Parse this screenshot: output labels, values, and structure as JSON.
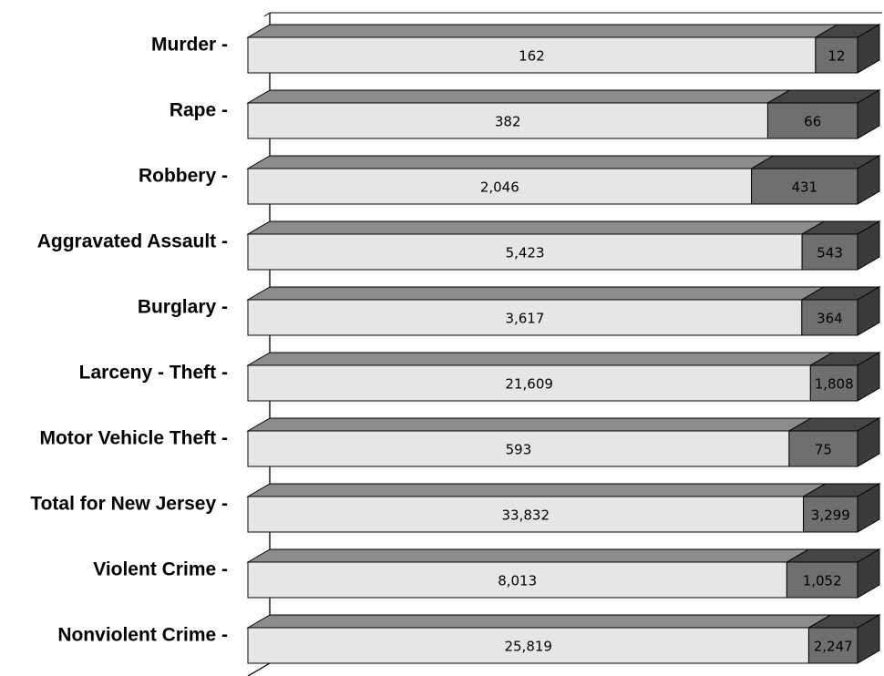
{
  "chart_data": {
    "type": "bar",
    "orientation": "horizontal",
    "stacked": "percent",
    "style": "3d",
    "grid": false,
    "legend": "none",
    "categories": [
      "Murder -",
      "Rape -",
      "Robbery -",
      "Aggravated Assault -",
      "Burglary -",
      "Larceny - Theft -",
      "Motor Vehicle Theft -",
      "Total for New Jersey -",
      "Violent Crime -",
      "Nonviolent Crime -"
    ],
    "series": [
      {
        "values": [
          162,
          382,
          2046,
          5423,
          3617,
          21609,
          593,
          33832,
          8013,
          25819
        ],
        "labels": [
          "162",
          "382",
          "2,046",
          "5,423",
          "3,617",
          "21,609",
          "593",
          "33,832",
          "8,013",
          "25,819"
        ]
      },
      {
        "values": [
          12,
          66,
          431,
          543,
          364,
          1808,
          75,
          3299,
          1052,
          2247
        ],
        "labels": [
          "12",
          "66",
          "431",
          "543",
          "364",
          "1,808",
          "75",
          "3,299",
          "1,052",
          "2,247"
        ]
      }
    ],
    "colors": {
      "series1_front": "#e6e6e6",
      "series1_top": "#8c8c8c",
      "series2_front": "#6f6f6f",
      "series2_top": "#454545",
      "series2_side": "#3a3a3a",
      "wall": "#ffffff",
      "outline": "#000000"
    }
  }
}
